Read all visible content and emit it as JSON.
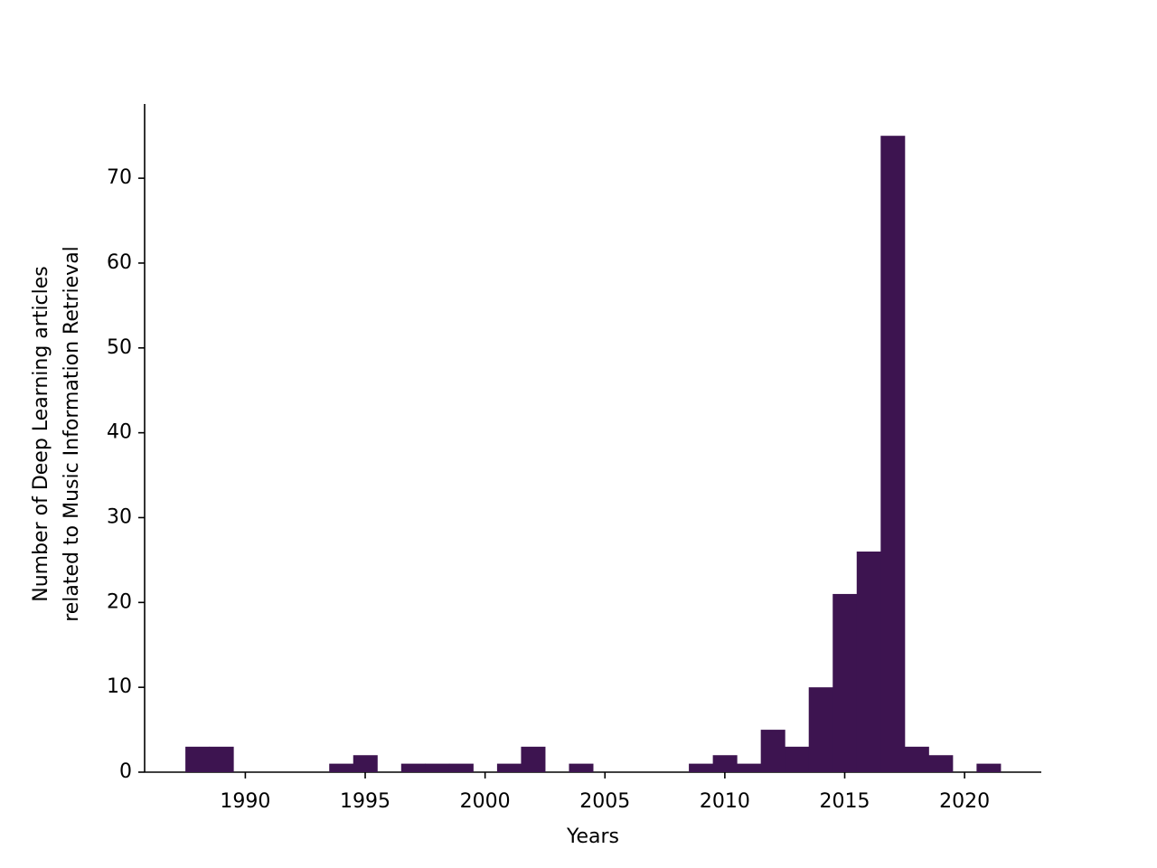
{
  "chart_data": {
    "type": "histogram",
    "xlabel": "Years",
    "ylabel": [
      "Number of Deep Learning articles",
      "related to Music Information Retrieval"
    ],
    "bins": [
      1987.5,
      1988.5,
      1989.5,
      1990.5,
      1991.5,
      1992.5,
      1993.5,
      1994.5,
      1995.5,
      1996.5,
      1997.5,
      1998.5,
      1999.5,
      2000.5,
      2001.5,
      2002.5,
      2003.5,
      2004.5,
      2005.5,
      2006.5,
      2007.5,
      2008.5,
      2009.5,
      2010.5,
      2011.5,
      2012.5,
      2013.5,
      2014.5,
      2015.5,
      2016.5,
      2017.5,
      2018.5,
      2019.5,
      2020.5,
      2021.5
    ],
    "values": [
      3,
      3,
      0,
      0,
      0,
      0,
      1,
      2,
      0,
      1,
      1,
      1,
      0,
      1,
      3,
      0,
      1,
      0,
      0,
      0,
      0,
      1,
      2,
      1,
      5,
      3,
      10,
      21,
      26,
      75,
      3,
      2,
      0,
      1
    ],
    "color": "#3d1450",
    "xlim": [
      1985.8,
      2023.2
    ],
    "xticks": [
      1990,
      1995,
      2000,
      2005,
      2010,
      2015,
      2020
    ],
    "ylim": [
      0,
      78.75
    ],
    "yticks": [
      0,
      10,
      20,
      30,
      40,
      50,
      60,
      70
    ]
  }
}
